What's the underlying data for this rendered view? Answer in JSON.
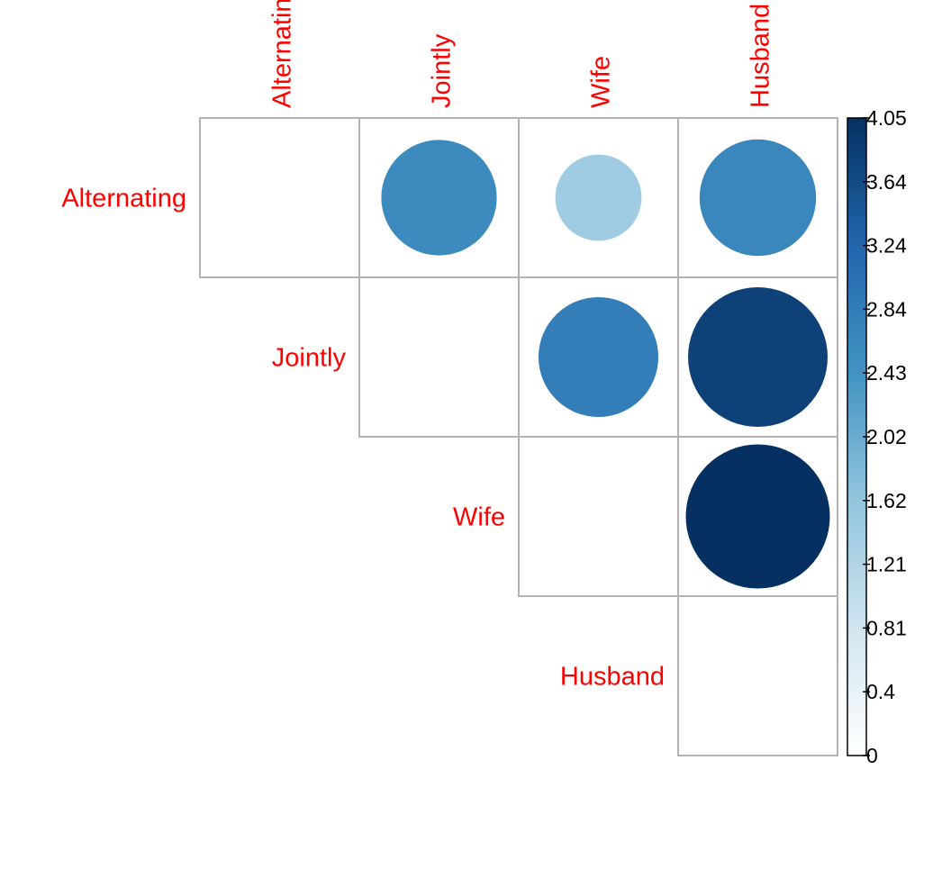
{
  "chart_data": {
    "type": "heatmap",
    "style": "correlation-circle-plot-upper-triangle",
    "variables": [
      "Alternating",
      "Jointly",
      "Wife",
      "Husband"
    ],
    "cells": [
      {
        "row": "Alternating",
        "col": "Alternating",
        "value": 0.0
      },
      {
        "row": "Alternating",
        "col": "Jointly",
        "value": 2.6
      },
      {
        "row": "Alternating",
        "col": "Wife",
        "value": 1.45
      },
      {
        "row": "Alternating",
        "col": "Husband",
        "value": 2.65
      },
      {
        "row": "Jointly",
        "col": "Jointly",
        "value": 0.0
      },
      {
        "row": "Jointly",
        "col": "Wife",
        "value": 2.8
      },
      {
        "row": "Jointly",
        "col": "Husband",
        "value": 3.8
      },
      {
        "row": "Wife",
        "col": "Wife",
        "value": 0.0
      },
      {
        "row": "Wife",
        "col": "Husband",
        "value": 4.05
      },
      {
        "row": "Husband",
        "col": "Husband",
        "value": 0.0
      }
    ],
    "label_color": "#ff0000",
    "grid_color": "#b3b3b3",
    "colorbar": {
      "range": [
        0,
        4.05
      ],
      "ticks": [
        "4.05",
        "3.64",
        "3.24",
        "2.84",
        "2.43",
        "2.02",
        "1.62",
        "1.21",
        "0.81",
        "0.4",
        "0"
      ],
      "colors": [
        "#ffffff",
        "#d1e5f0",
        "#92c5de",
        "#4393c3",
        "#2166ac",
        "#053061"
      ],
      "placement": "right"
    }
  }
}
